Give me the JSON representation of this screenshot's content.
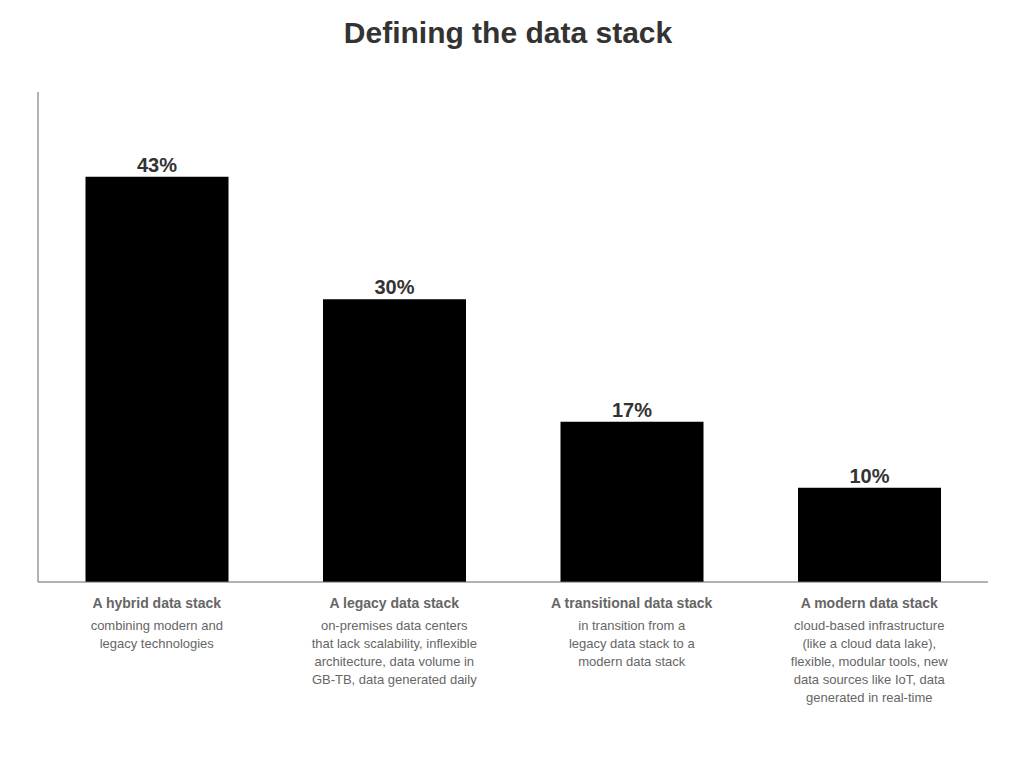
{
  "chart_data": {
    "type": "bar",
    "title": "Defining the data stack",
    "categories": [
      "A hybrid data stack",
      "A legacy data stack",
      "A transitional data stack",
      "A modern data stack"
    ],
    "descriptions": [
      "combining modern and\nlegacy technologies",
      "on-premises data centers\nthat lack scalability, inflexible\narchitecture, data volume in\nGB-TB, data generated daily",
      "in transition from a\nlegacy data stack to a\nmodern data stack",
      "cloud-based infrastructure\n(like a cloud data lake),\nflexible, modular tools, new\ndata sources like IoT, data\ngenerated in real-time"
    ],
    "values": [
      43,
      30,
      17,
      10
    ],
    "value_labels": [
      "43%",
      "30%",
      "17%",
      "10%"
    ],
    "data_labels": true,
    "ylim": [
      0,
      52
    ],
    "tick_labels": false,
    "grid": false
  }
}
